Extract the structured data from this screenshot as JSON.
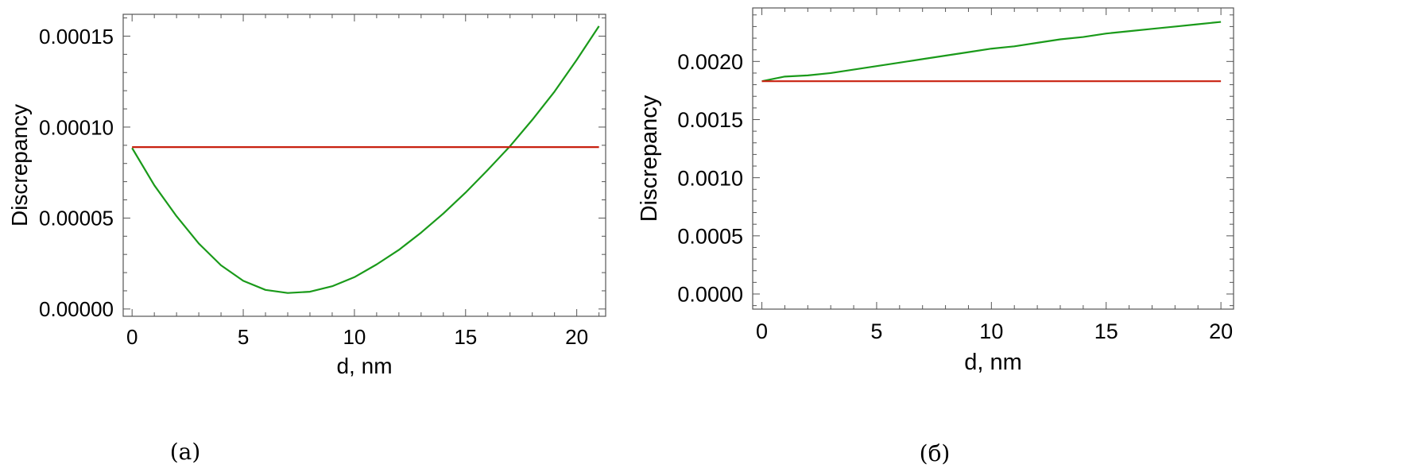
{
  "chart_data": [
    {
      "type": "line",
      "panel_label": "(a)",
      "xlabel": "d, nm",
      "ylabel": "Discrepancy",
      "xlim": [
        -0.4,
        21.3
      ],
      "ylim": [
        -4e-06,
        0.000162
      ],
      "xticks": [
        0,
        5,
        10,
        15,
        20
      ],
      "xtick_labels": [
        "0",
        "5",
        "10",
        "15",
        "20"
      ],
      "yticks": [
        0,
        5e-05,
        0.0001,
        0.00015
      ],
      "ytick_labels": [
        "0.00000",
        "0.00005",
        "0.00010",
        "0.00015"
      ],
      "grid": false,
      "series": [
        {
          "color": "#1a9a1a",
          "x": [
            0,
            1,
            2,
            3,
            4,
            5,
            6,
            7,
            8,
            9,
            10,
            11,
            12,
            13,
            14,
            15,
            16,
            17,
            18,
            19,
            20,
            21
          ],
          "y": [
            8.85e-05,
            6.8e-05,
            5.1e-05,
            3.6e-05,
            2.4e-05,
            1.55e-05,
            1.05e-05,
            8.8e-06,
            9.5e-06,
            1.25e-05,
            1.75e-05,
            2.45e-05,
            3.25e-05,
            4.2e-05,
            5.25e-05,
            6.4e-05,
            7.65e-05,
            8.95e-05,
            0.000104,
            0.0001195,
            0.000137,
            0.0001555
          ]
        },
        {
          "color": "#c8200f",
          "x": [
            0,
            21
          ],
          "y": [
            8.9e-05,
            8.9e-05
          ]
        }
      ]
    },
    {
      "type": "line",
      "panel_label": "(б)",
      "xlabel": "d, nm",
      "ylabel": "Discrepancy",
      "xlim": [
        -0.4,
        20.55
      ],
      "ylim": [
        -0.00013,
        0.00246
      ],
      "xticks": [
        0,
        5,
        10,
        15,
        20
      ],
      "xtick_labels": [
        "0",
        "5",
        "10",
        "15",
        "20"
      ],
      "yticks": [
        0,
        0.0005,
        0.001,
        0.0015,
        0.002
      ],
      "ytick_labels": [
        "0.0000",
        "0.0005",
        "0.0010",
        "0.0015",
        "0.0020"
      ],
      "grid": false,
      "series": [
        {
          "color": "#1a9a1a",
          "x": [
            0,
            1,
            2,
            3,
            4,
            5,
            6,
            7,
            8,
            9,
            10,
            11,
            12,
            13,
            14,
            15,
            16,
            17,
            18,
            19,
            20
          ],
          "y": [
            0.00183,
            0.00187,
            0.00188,
            0.0019,
            0.00193,
            0.00196,
            0.00199,
            0.00202,
            0.00205,
            0.00208,
            0.00211,
            0.00213,
            0.00216,
            0.00219,
            0.00221,
            0.00224,
            0.00226,
            0.00228,
            0.0023,
            0.00232,
            0.00234
          ]
        },
        {
          "color": "#c8200f",
          "x": [
            0,
            20
          ],
          "y": [
            0.00183,
            0.00183
          ]
        }
      ]
    }
  ]
}
